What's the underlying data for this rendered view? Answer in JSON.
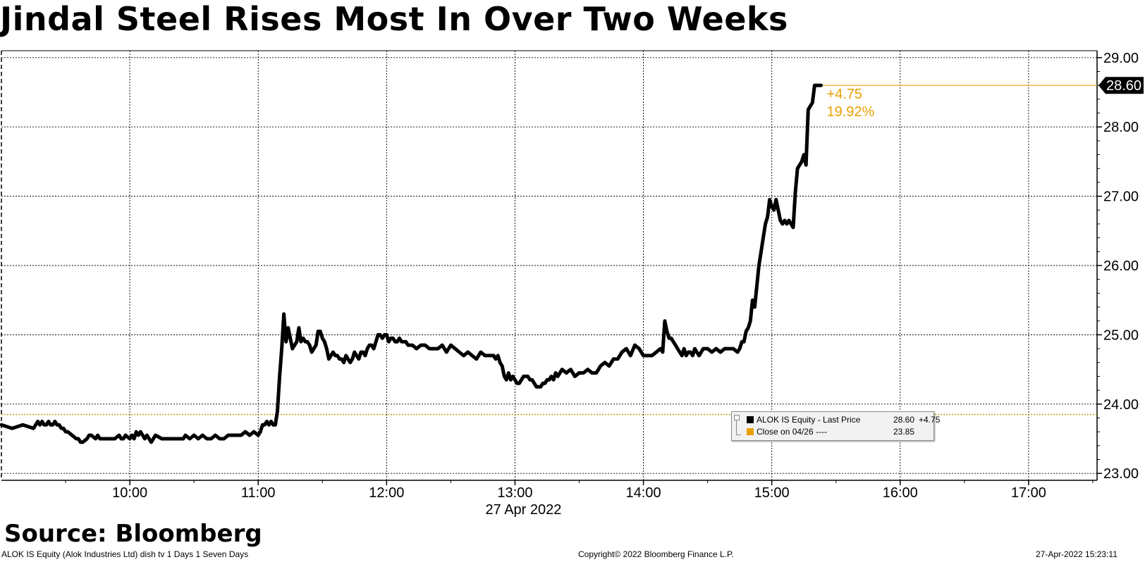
{
  "header": {
    "title": "Jindal Steel Rises Most In Over Two Weeks"
  },
  "source": "Source: Bloomberg",
  "footer": {
    "left": "ALOK IS Equity (Alok Industries Ltd) dish tv 1 Days 1 Seven Days",
    "center": "Copyright© 2022 Bloomberg Finance L.P.",
    "right": "27-Apr-2022 15:23:11"
  },
  "legend": {
    "row1_name": "ALOK IS Equity - Last Price",
    "row1_value": "28.60",
    "row1_change": "+4.75",
    "row2_name": "Close on 04/26 ----",
    "row2_value": "23.85"
  },
  "colors": {
    "line": "#000000",
    "accent": "#e8a000",
    "grid": "#000000"
  },
  "chart_data": {
    "type": "line",
    "title": "Jindal Steel Rises Most In Over Two Weeks",
    "date_label": "27 Apr 2022",
    "x_ticks": [
      "10:00",
      "11:00",
      "12:00",
      "13:00",
      "14:00",
      "15:00",
      "16:00",
      "17:00"
    ],
    "y_ticks": [
      "23.00",
      "24.00",
      "25.00",
      "26.00",
      "27.00",
      "28.00",
      "29.00"
    ],
    "xlim": [
      "09:00",
      "17:32"
    ],
    "ylim": [
      22.9,
      29.1
    ],
    "grid": true,
    "last_price_label": "28.60",
    "change_abs": "+4.75",
    "change_pct": "19.92%",
    "reference_line": {
      "name": "Close on 04/26",
      "value": 23.85
    },
    "series": [
      {
        "name": "ALOK IS Equity - Last Price",
        "x": [
          "09:00",
          "09:05",
          "09:10",
          "09:15",
          "09:17",
          "09:18",
          "09:19",
          "09:20",
          "09:21",
          "09:22",
          "09:23",
          "09:24",
          "09:25",
          "09:26",
          "09:27",
          "09:28",
          "09:29",
          "09:30",
          "09:31",
          "09:33",
          "09:35",
          "09:36",
          "09:37",
          "09:38",
          "09:40",
          "09:41",
          "09:42",
          "09:44",
          "09:45",
          "09:46",
          "09:47",
          "09:48",
          "09:50",
          "09:53",
          "09:55",
          "09:56",
          "09:57",
          "09:58",
          "10:00",
          "10:01",
          "10:02",
          "10:03",
          "10:04",
          "10:05",
          "10:06",
          "10:07",
          "10:08",
          "10:10",
          "10:12",
          "10:15",
          "10:18",
          "10:20",
          "10:22",
          "10:25",
          "10:26",
          "10:28",
          "10:30",
          "10:32",
          "10:34",
          "10:36",
          "10:38",
          "10:40",
          "10:42",
          "10:44",
          "10:46",
          "10:48",
          "10:50",
          "10:52",
          "10:54",
          "10:56",
          "10:58",
          "11:00",
          "11:01",
          "11:02",
          "11:03",
          "11:04",
          "11:05",
          "11:06",
          "11:07",
          "11:08",
          "11:09",
          "11:10",
          "11:11",
          "11:12",
          "11:13",
          "11:14",
          "11:15",
          "11:16",
          "11:17",
          "11:18",
          "11:19",
          "11:20",
          "11:21",
          "11:22",
          "11:23",
          "11:24",
          "11:25",
          "11:26",
          "11:27",
          "11:28",
          "11:29",
          "11:30",
          "11:31",
          "11:32",
          "11:33",
          "11:34",
          "11:35",
          "11:36",
          "11:37",
          "11:38",
          "11:39",
          "11:40",
          "11:41",
          "11:42",
          "11:43",
          "11:44",
          "11:45",
          "11:46",
          "11:47",
          "11:48",
          "11:49",
          "11:50",
          "11:51",
          "11:52",
          "11:53",
          "11:54",
          "11:55",
          "11:56",
          "11:57",
          "11:58",
          "11:59",
          "12:00",
          "12:01",
          "12:02",
          "12:03",
          "12:04",
          "12:05",
          "12:06",
          "12:07",
          "12:08",
          "12:09",
          "12:10",
          "12:12",
          "12:14",
          "12:16",
          "12:18",
          "12:20",
          "12:22",
          "12:24",
          "12:26",
          "12:28",
          "12:30",
          "12:32",
          "12:34",
          "12:36",
          "12:38",
          "12:40",
          "12:42",
          "12:44",
          "12:46",
          "12:48",
          "12:50",
          "12:51",
          "12:52",
          "12:53",
          "12:54",
          "12:55",
          "12:56",
          "12:57",
          "12:58",
          "12:59",
          "13:00",
          "13:01",
          "13:02",
          "13:03",
          "13:04",
          "13:05",
          "13:06",
          "13:07",
          "13:08",
          "13:09",
          "13:10",
          "13:11",
          "13:12",
          "13:13",
          "13:14",
          "13:15",
          "13:16",
          "13:17",
          "13:18",
          "13:19",
          "13:20",
          "13:22",
          "13:24",
          "13:26",
          "13:28",
          "13:30",
          "13:32",
          "13:34",
          "13:36",
          "13:38",
          "13:40",
          "13:42",
          "13:44",
          "13:46",
          "13:48",
          "13:50",
          "13:52",
          "13:54",
          "13:56",
          "13:58",
          "14:00",
          "14:02",
          "14:04",
          "14:06",
          "14:08",
          "14:09",
          "14:10",
          "14:11",
          "14:12",
          "14:13",
          "14:14",
          "14:15",
          "14:16",
          "14:17",
          "14:18",
          "14:19",
          "14:20",
          "14:21",
          "14:22",
          "14:23",
          "14:24",
          "14:25",
          "14:26",
          "14:27",
          "14:28",
          "14:29",
          "14:30",
          "14:32",
          "14:34",
          "14:36",
          "14:38",
          "14:40",
          "14:42",
          "14:44",
          "14:45",
          "14:46",
          "14:47",
          "14:48",
          "14:49",
          "14:50",
          "14:51",
          "14:52",
          "14:53",
          "14:54",
          "14:55",
          "14:56",
          "14:57",
          "14:58",
          "14:59",
          "15:00",
          "15:01",
          "15:02",
          "15:03",
          "15:04",
          "15:05",
          "15:06",
          "15:07",
          "15:08",
          "15:09",
          "15:10",
          "15:11",
          "15:12",
          "15:13",
          "15:14",
          "15:15",
          "15:16",
          "15:17",
          "15:18",
          "15:19",
          "15:20",
          "15:21",
          "15:22",
          "15:23"
        ],
        "values": [
          23.7,
          23.65,
          23.7,
          23.65,
          23.75,
          23.7,
          23.75,
          23.7,
          23.7,
          23.75,
          23.7,
          23.7,
          23.75,
          23.7,
          23.7,
          23.65,
          23.65,
          23.6,
          23.6,
          23.55,
          23.5,
          23.5,
          23.45,
          23.45,
          23.5,
          23.55,
          23.55,
          23.5,
          23.55,
          23.5,
          23.5,
          23.5,
          23.5,
          23.5,
          23.55,
          23.5,
          23.5,
          23.55,
          23.5,
          23.55,
          23.5,
          23.6,
          23.55,
          23.6,
          23.55,
          23.5,
          23.55,
          23.45,
          23.55,
          23.5,
          23.5,
          23.5,
          23.5,
          23.5,
          23.55,
          23.5,
          23.55,
          23.5,
          23.55,
          23.5,
          23.5,
          23.55,
          23.5,
          23.5,
          23.55,
          23.55,
          23.55,
          23.55,
          23.6,
          23.55,
          23.6,
          23.55,
          23.6,
          23.7,
          23.7,
          23.75,
          23.7,
          23.75,
          23.7,
          23.7,
          23.9,
          24.4,
          24.8,
          25.3,
          24.9,
          25.1,
          24.95,
          24.8,
          24.85,
          24.9,
          25.1,
          24.9,
          24.95,
          24.9,
          24.9,
          24.85,
          24.75,
          24.8,
          24.85,
          25.05,
          25.05,
          24.95,
          24.9,
          24.8,
          24.65,
          24.7,
          24.75,
          24.7,
          24.7,
          24.65,
          24.65,
          24.6,
          24.7,
          24.65,
          24.6,
          24.65,
          24.75,
          24.7,
          24.65,
          24.75,
          24.75,
          24.7,
          24.8,
          24.85,
          24.85,
          24.8,
          24.9,
          25.0,
          25.0,
          24.95,
          25.0,
          25.0,
          24.9,
          24.95,
          24.95,
          24.9,
          24.9,
          24.95,
          24.9,
          24.9,
          24.9,
          24.85,
          24.85,
          24.8,
          24.85,
          24.85,
          24.8,
          24.8,
          24.8,
          24.85,
          24.75,
          24.85,
          24.8,
          24.75,
          24.7,
          24.75,
          24.7,
          24.65,
          24.75,
          24.7,
          24.7,
          24.7,
          24.65,
          24.7,
          24.6,
          24.55,
          24.4,
          24.35,
          24.45,
          24.35,
          24.4,
          24.35,
          24.3,
          24.3,
          24.35,
          24.4,
          24.4,
          24.4,
          24.35,
          24.35,
          24.3,
          24.25,
          24.25,
          24.25,
          24.3,
          24.3,
          24.35,
          24.35,
          24.4,
          24.35,
          24.45,
          24.4,
          24.5,
          24.45,
          24.5,
          24.4,
          24.45,
          24.45,
          24.5,
          24.45,
          24.45,
          24.55,
          24.6,
          24.55,
          24.65,
          24.65,
          24.75,
          24.8,
          24.7,
          24.85,
          24.8,
          24.7,
          24.7,
          24.7,
          24.75,
          24.8,
          24.75,
          25.2,
          25.05,
          24.95,
          24.95,
          24.9,
          24.85,
          24.8,
          24.75,
          24.7,
          24.8,
          24.7,
          24.75,
          24.75,
          24.7,
          24.8,
          24.75,
          24.7,
          24.75,
          24.8,
          24.8,
          24.8,
          24.75,
          24.8,
          24.75,
          24.8,
          24.8,
          24.8,
          24.75,
          24.8,
          24.9,
          24.9,
          25.05,
          25.1,
          25.2,
          25.5,
          25.4,
          25.7,
          26.0,
          26.2,
          26.4,
          26.6,
          26.7,
          26.95,
          26.85,
          26.8,
          26.95,
          26.8,
          26.65,
          26.6,
          26.65,
          26.6,
          26.65,
          26.6,
          26.55,
          27.05,
          27.4,
          27.45,
          27.5,
          27.6,
          27.45,
          28.25,
          28.3,
          28.35,
          28.6,
          28.6,
          28.6,
          28.6
        ]
      }
    ]
  }
}
